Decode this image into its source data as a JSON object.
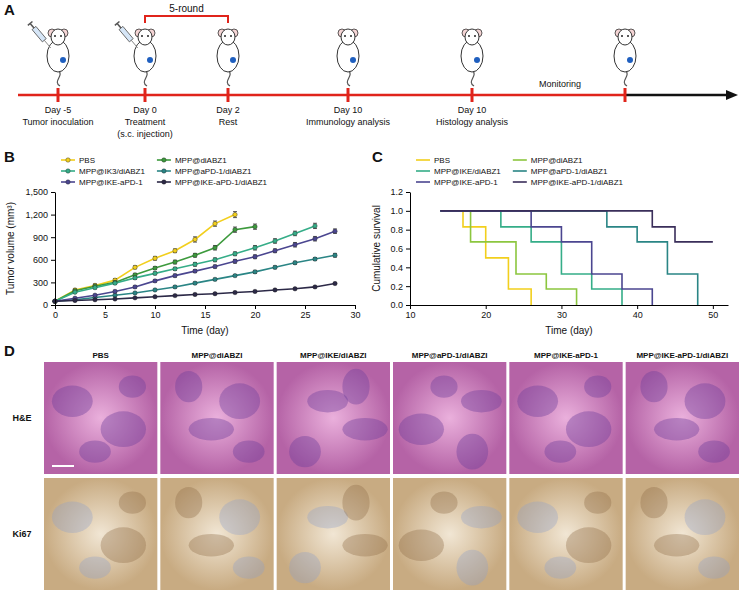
{
  "timeline": {
    "panel": "A",
    "bracket": "5-round",
    "events": [
      {
        "day": "Day -5",
        "lines": [
          "Tumor inoculation"
        ]
      },
      {
        "day": "Day 0",
        "lines": [
          "Treatment",
          "(s.c. injection)"
        ]
      },
      {
        "day": "Day 2",
        "lines": [
          "Rest"
        ]
      },
      {
        "day": "Day 10",
        "lines": [
          "Immunology analysis"
        ]
      },
      {
        "day": "Day 10",
        "lines": [
          "Histology analysis"
        ]
      }
    ],
    "monitoring": "Monitoring"
  },
  "chart_data": [
    {
      "panel": "B",
      "type": "line",
      "x_label": "Time (day)",
      "y_label": "Tumor volume (mm³)",
      "x": [
        0,
        2,
        4,
        6,
        8,
        10,
        12,
        14,
        16,
        18,
        20,
        22,
        24,
        26,
        28
      ],
      "xlim": [
        0,
        30
      ],
      "xticks": [
        0,
        5,
        10,
        15,
        20,
        25,
        30
      ],
      "ylim": [
        0,
        1500
      ],
      "yticks": [
        0,
        300,
        600,
        900,
        {
          "value": 1200,
          "label": "1,200"
        },
        {
          "value": 1500,
          "label": "1,500"
        }
      ],
      "marker": "circle",
      "legend": "top",
      "series": [
        {
          "name": "PBS",
          "color": "#f2cf1d",
          "values": [
            50,
            200,
            260,
            330,
            500,
            620,
            720,
            870,
            1080,
            1200,
            null,
            null,
            null,
            null,
            null
          ],
          "errors": [
            5,
            15,
            20,
            20,
            20,
            25,
            25,
            35,
            35,
            40,
            null,
            null,
            null,
            null,
            null
          ]
        },
        {
          "name": "MPP@diABZ1",
          "color": "#3d9a3d",
          "values": [
            50,
            190,
            250,
            300,
            400,
            490,
            570,
            660,
            760,
            1000,
            1040,
            null,
            null,
            null,
            null
          ],
          "errors": [
            5,
            15,
            15,
            20,
            20,
            20,
            25,
            25,
            30,
            35,
            35,
            null,
            null,
            null,
            null
          ]
        },
        {
          "name": "MPP@IK3/diABZ1",
          "color": "#35ad88",
          "values": [
            50,
            170,
            230,
            290,
            360,
            420,
            480,
            540,
            600,
            680,
            760,
            850,
            950,
            1050,
            null
          ],
          "errors": [
            5,
            10,
            15,
            15,
            20,
            20,
            20,
            25,
            25,
            25,
            30,
            30,
            30,
            35,
            null
          ]
        },
        {
          "name": "MPP@aPD-1/diABZ1",
          "color": "#2a8585",
          "values": [
            50,
            70,
            100,
            130,
            160,
            200,
            240,
            290,
            340,
            390,
            440,
            500,
            560,
            610,
            660
          ],
          "errors": [
            5,
            5,
            10,
            10,
            10,
            10,
            15,
            15,
            15,
            15,
            20,
            20,
            20,
            20,
            25
          ]
        },
        {
          "name": "MPP@IKE-aPD-1",
          "color": "#4b4690",
          "values": [
            50,
            90,
            130,
            180,
            240,
            320,
            390,
            450,
            510,
            580,
            640,
            720,
            800,
            880,
            980
          ],
          "errors": [
            5,
            10,
            10,
            15,
            15,
            15,
            20,
            20,
            20,
            25,
            25,
            25,
            30,
            30,
            30
          ]
        },
        {
          "name": "MPP@IKE-aPD-1/diABZ1",
          "color": "#2c2947",
          "values": [
            50,
            60,
            70,
            80,
            95,
            110,
            125,
            140,
            150,
            165,
            180,
            200,
            215,
            240,
            285
          ],
          "errors": [
            5,
            5,
            5,
            5,
            5,
            5,
            5,
            10,
            10,
            10,
            10,
            10,
            10,
            10,
            10
          ]
        }
      ]
    },
    {
      "panel": "C",
      "type": "step",
      "x_label": "Time (day)",
      "y_label": "Cumulative survival",
      "xlim": [
        10,
        52
      ],
      "xticks": [
        10,
        20,
        30,
        40,
        50
      ],
      "ylim": [
        0,
        1.2
      ],
      "yticks": [
        {
          "value": 0,
          "label": "0.0"
        },
        0.2,
        0.4,
        0.6,
        0.8,
        {
          "value": 1,
          "label": "1.0"
        },
        1.2
      ],
      "legend": "top",
      "series": [
        {
          "name": "PBS",
          "color": "#f2cf1d",
          "x": [
            14,
            17,
            20,
            23,
            26
          ],
          "values": [
            1,
            0.83,
            0.5,
            0.17,
            0
          ]
        },
        {
          "name": "MPP@diABZ1",
          "color": "#8cc63f",
          "x": [
            14,
            18,
            24,
            28,
            32
          ],
          "values": [
            1,
            0.67,
            0.33,
            0.17,
            0
          ]
        },
        {
          "name": "MPP@IKE/diABZ1",
          "color": "#35ad88",
          "x": [
            14,
            22,
            26,
            30,
            34,
            38
          ],
          "values": [
            1,
            0.83,
            0.67,
            0.33,
            0.17,
            0
          ]
        },
        {
          "name": "MPP@aPD-1/diABZ1",
          "color": "#2a8585",
          "x": [
            14,
            36,
            40,
            44,
            48
          ],
          "values": [
            1,
            0.83,
            0.67,
            0.33,
            0
          ]
        },
        {
          "name": "MPP@IKE-aPD-1",
          "color": "#4b4690",
          "x": [
            14,
            26,
            30,
            34,
            38,
            42
          ],
          "values": [
            1,
            0.83,
            0.67,
            0.33,
            0.17,
            0
          ]
        },
        {
          "name": "MPP@IKE-aPD-1/diABZ1",
          "color": "#3a2e5a",
          "x": [
            14,
            42,
            45,
            50
          ],
          "values": [
            1,
            0.83,
            0.67,
            0.67
          ]
        }
      ]
    }
  ],
  "histology": {
    "panel": "D",
    "columns": [
      "PBS",
      "MPP@diABZI",
      "MPP@IKE/diABZI",
      "MPP@aPD-1/diABZI",
      "MPP@IKE-aPD-1",
      "MPP@IKE-aPD-1/diABZI"
    ],
    "rows": [
      "H&E",
      "Ki67"
    ]
  }
}
